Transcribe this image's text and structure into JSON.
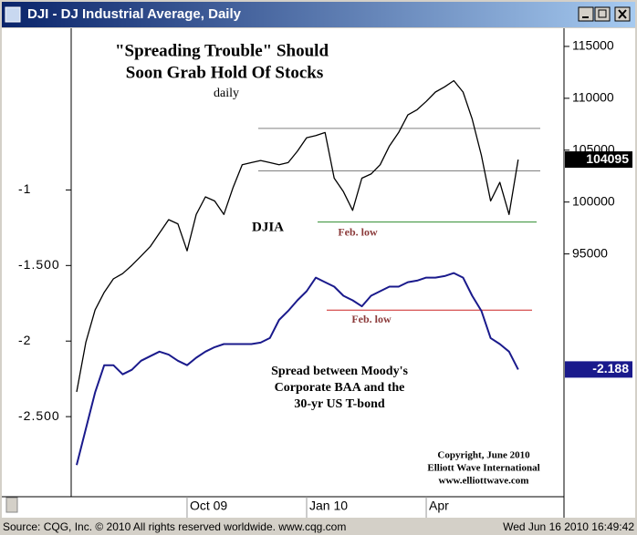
{
  "window_title": "DJI - DJ Industrial Average, Daily",
  "status_bar": {
    "source": "Source: CQG, Inc. © 2010 All rights reserved worldwide. www.cqg.com",
    "timestamp": "Wed Jun 16 2010 16:49:42"
  },
  "chart_data": {
    "type": "line",
    "title": [
      "\"Spreading Trouble\" Should",
      "Soon Grab Hold Of Stocks"
    ],
    "subtitle": "daily",
    "annotations": {
      "djia": "DJIA",
      "spread": [
        "Spread between Moody's",
        "Corporate BAA and the",
        "30-yr US T-bond"
      ],
      "copyright": [
        "Copyright, June 2010",
        "Elliott Wave International",
        "www.elliottwave.com"
      ]
    },
    "categories": [
      null,
      null,
      null,
      null,
      null,
      null,
      null,
      null,
      null,
      null,
      null,
      null,
      "Oct 09",
      null,
      null,
      null,
      null,
      null,
      null,
      null,
      null,
      null,
      null,
      null,
      null,
      "Jan 10",
      null,
      null,
      null,
      null,
      null,
      null,
      null,
      null,
      null,
      null,
      null,
      null,
      "Apr",
      null,
      null,
      null,
      null,
      null,
      null,
      null,
      null,
      null,
      null
    ],
    "series": [
      {
        "name": "DJIA",
        "color": "#000000",
        "axis": "y2",
        "values": [
          81700,
          86500,
          89600,
          91300,
          92600,
          93100,
          93900,
          94800,
          95700,
          97000,
          98300,
          97900,
          95300,
          98800,
          100500,
          100100,
          98800,
          101400,
          103600,
          103800,
          104000,
          103800,
          103600,
          103800,
          104900,
          106200,
          106400,
          106700,
          102300,
          101000,
          99200,
          102300,
          102700,
          103600,
          105400,
          106700,
          108400,
          108900,
          109700,
          110600,
          111100,
          111700,
          110600,
          108000,
          104500,
          100100,
          101900,
          98800,
          104095
        ]
      },
      {
        "name": "Spread",
        "color": "#1a1a8c",
        "axis": "y",
        "values": [
          -2.82,
          -2.58,
          -2.34,
          -2.16,
          -2.16,
          -2.22,
          -2.19,
          -2.13,
          -2.1,
          -2.07,
          -2.09,
          -2.13,
          -2.16,
          -2.11,
          -2.07,
          -2.04,
          -2.02,
          -2.02,
          -2.02,
          -2.02,
          -2.01,
          -1.98,
          -1.86,
          -1.8,
          -1.73,
          -1.67,
          -1.58,
          -1.61,
          -1.64,
          -1.7,
          -1.73,
          -1.77,
          -1.7,
          -1.67,
          -1.64,
          -1.64,
          -1.61,
          -1.6,
          -1.58,
          -1.58,
          -1.57,
          -1.55,
          -1.58,
          -1.7,
          -1.8,
          -1.98,
          -2.02,
          -2.07,
          -2.188
        ]
      }
    ],
    "ylim": [
      -3.03,
      0.07
    ],
    "yticks": [
      -1,
      {
        "value": -1.5,
        "label": "-1.500"
      },
      -2,
      {
        "value": -2.5,
        "label": "-2.500"
      }
    ],
    "y2lim": [
      71600,
      116750
    ],
    "y2ticks": [
      95000,
      100000,
      105000,
      110000,
      115000
    ],
    "hlines": [
      {
        "value": 107100,
        "axis": "y2",
        "color": "#808080"
      },
      {
        "value": 103000,
        "axis": "y2",
        "color": "#808080"
      },
      {
        "value": 98070,
        "axis": "y2",
        "color": "#2e8b2e",
        "label": "Feb. low"
      },
      {
        "value": -1.795,
        "axis": "y",
        "color": "#cc2222",
        "label": "Feb. low"
      }
    ]
  }
}
